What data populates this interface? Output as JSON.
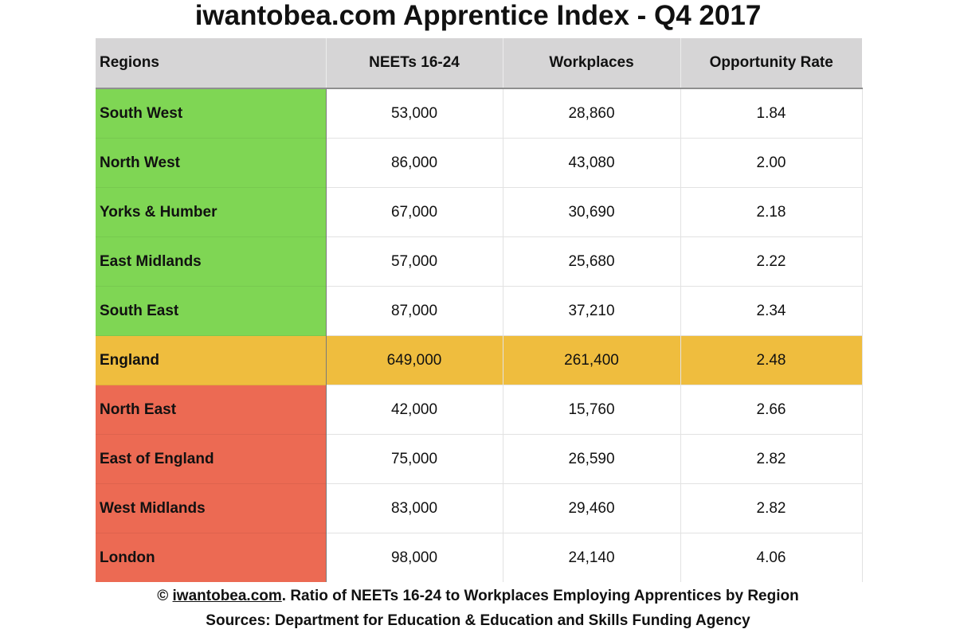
{
  "title": "iwantobea.com Apprentice Index - Q4 2017",
  "colors": {
    "green": "#7fd654",
    "amber": "#efbd3e",
    "red": "#ec6a53",
    "header_bg": "#d6d5d6"
  },
  "table": {
    "headers": {
      "regions": "Regions",
      "neets": "NEETs 16-24",
      "workplaces": "Workplaces",
      "rate": "Opportunity Rate"
    },
    "rows": [
      {
        "region": "South West",
        "neets": "53,000",
        "workplaces": "28,860",
        "rate": "1.84",
        "status": "green"
      },
      {
        "region": "North West",
        "neets": "86,000",
        "workplaces": "43,080",
        "rate": "2.00",
        "status": "green"
      },
      {
        "region": "Yorks & Humber",
        "neets": "67,000",
        "workplaces": "30,690",
        "rate": "2.18",
        "status": "green"
      },
      {
        "region": "East Midlands",
        "neets": "57,000",
        "workplaces": "25,680",
        "rate": "2.22",
        "status": "green"
      },
      {
        "region": "South East",
        "neets": "87,000",
        "workplaces": "37,210",
        "rate": "2.34",
        "status": "green"
      },
      {
        "region": "England",
        "neets": "649,000",
        "workplaces": "261,400",
        "rate": "2.48",
        "status": "amber"
      },
      {
        "region": "North East",
        "neets": "42,000",
        "workplaces": "15,760",
        "rate": "2.66",
        "status": "red"
      },
      {
        "region": "East of England",
        "neets": "75,000",
        "workplaces": "26,590",
        "rate": "2.82",
        "status": "red"
      },
      {
        "region": "West Midlands",
        "neets": "83,000",
        "workplaces": "29,460",
        "rate": "2.82",
        "status": "red"
      },
      {
        "region": "London",
        "neets": "98,000",
        "workplaces": "24,140",
        "rate": "4.06",
        "status": "red"
      }
    ]
  },
  "footer": {
    "copyright_symbol": "©",
    "site_link": "iwantobea.com",
    "description": ". Ratio of NEETs 16-24 to Workplaces Employing Apprentices by Region",
    "sources": "Sources: Department for Education & Education and Skills Funding Agency"
  }
}
